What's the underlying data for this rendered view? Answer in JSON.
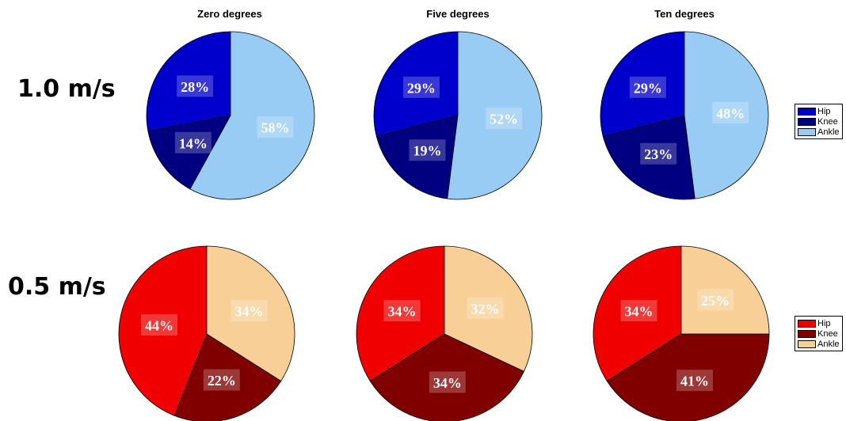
{
  "columns": [
    "Zero degrees",
    "Five degrees",
    "Ten degrees"
  ],
  "rows": [
    "1.0 m/s",
    "0.5 m/s"
  ],
  "legends": [
    {
      "items": [
        {
          "label": "Hip",
          "color": "#0000cc"
        },
        {
          "label": "Knee",
          "color": "#000080"
        },
        {
          "label": "Ankle",
          "color": "#99ccf5"
        }
      ]
    },
    {
      "items": [
        {
          "label": "Hip",
          "color": "#f00000"
        },
        {
          "label": "Knee",
          "color": "#800000"
        },
        {
          "label": "Ankle",
          "color": "#f8d097"
        }
      ]
    }
  ],
  "chart_data": [
    {
      "type": "pie",
      "title": "Zero degrees",
      "row": "1.0 m/s",
      "labels": [
        "Hip",
        "Knee",
        "Ankle"
      ],
      "values": [
        28,
        14,
        58
      ],
      "value_labels": [
        "28%",
        "14%",
        "58%"
      ],
      "colors": [
        "#0000cc",
        "#000080",
        "#99ccf5"
      ]
    },
    {
      "type": "pie",
      "title": "Five degrees",
      "row": "1.0 m/s",
      "labels": [
        "Hip",
        "Knee",
        "Ankle"
      ],
      "values": [
        29,
        19,
        52
      ],
      "value_labels": [
        "29%",
        "19%",
        "52%"
      ],
      "colors": [
        "#0000cc",
        "#000080",
        "#99ccf5"
      ]
    },
    {
      "type": "pie",
      "title": "Ten degrees",
      "row": "1.0 m/s",
      "labels": [
        "Hip",
        "Knee",
        "Ankle"
      ],
      "values": [
        29,
        23,
        48
      ],
      "value_labels": [
        "29%",
        "23%",
        "48%"
      ],
      "colors": [
        "#0000cc",
        "#000080",
        "#99ccf5"
      ]
    },
    {
      "type": "pie",
      "title": "Zero degrees",
      "row": "0.5 m/s",
      "labels": [
        "Hip",
        "Knee",
        "Ankle"
      ],
      "values": [
        44,
        22,
        34
      ],
      "value_labels": [
        "44%",
        "22%",
        "34%"
      ],
      "colors": [
        "#f00000",
        "#800000",
        "#f8d097"
      ]
    },
    {
      "type": "pie",
      "title": "Five degrees",
      "row": "0.5 m/s",
      "labels": [
        "Hip",
        "Knee",
        "Ankle"
      ],
      "values": [
        34,
        34,
        32
      ],
      "value_labels": [
        "34%",
        "34%",
        "32%"
      ],
      "colors": [
        "#f00000",
        "#800000",
        "#f8d097"
      ]
    },
    {
      "type": "pie",
      "title": "Ten degrees",
      "row": "0.5 m/s",
      "labels": [
        "Hip",
        "Knee",
        "Ankle"
      ],
      "values": [
        34,
        41,
        25
      ],
      "value_labels": [
        "34%",
        "41%",
        "25%"
      ],
      "colors": [
        "#f00000",
        "#800000",
        "#f8d097"
      ]
    }
  ]
}
